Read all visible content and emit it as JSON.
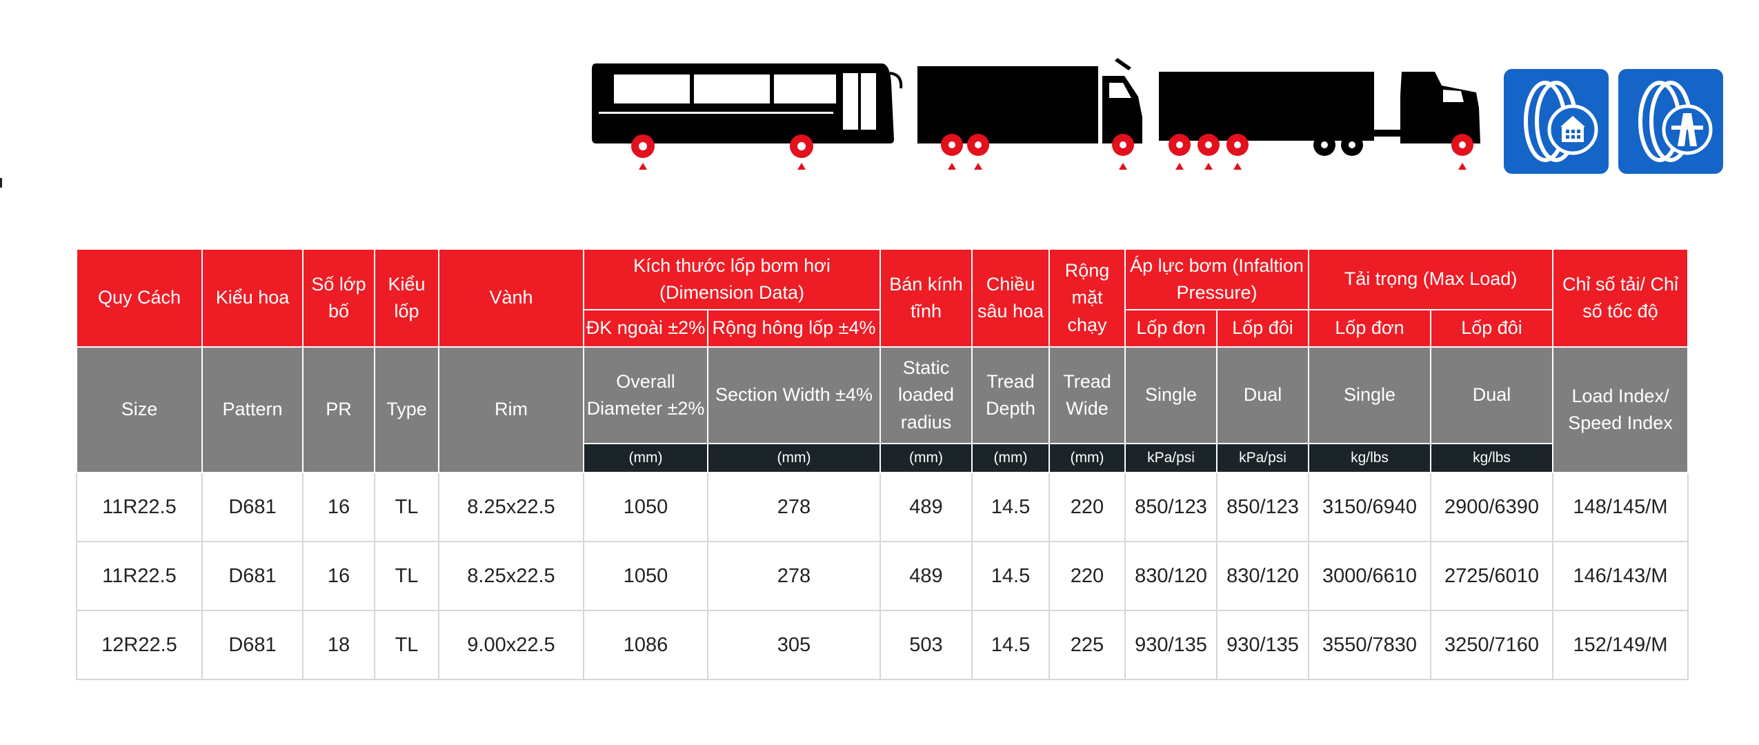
{
  "colors": {
    "accent_red": "#ee1c25",
    "header_gray": "#7f7f80",
    "unit_dark": "#1b2428",
    "icon_blue": "#1565c8"
  },
  "icons": [
    "bus-icon",
    "box-truck-icon",
    "semi-trailer-truck-icon",
    "urban-road-tire-icon",
    "highway-tire-icon"
  ],
  "headers_vi": {
    "size": "Quy Cách",
    "pattern": "Kiểu hoa",
    "pr": "Số lớp bố",
    "type": "Kiểu lốp",
    "rim": "Vành",
    "dimension": "Kích thước lốp bơm hơi (Dimension Data)",
    "overall_diameter": "ĐK ngoài ±2%",
    "section_width": "Rộng hông lốp ±4%",
    "static_radius": "Bán kính tĩnh",
    "tread_depth": "Chiều sâu hoa",
    "tread_wide": "Rộng mặt chạy",
    "pressure": "Áp lực bơm (Infaltion Pressure)",
    "pressure_single": "Lốp đơn",
    "pressure_dual": "Lốp đôi",
    "load": "Tải trọng (Max Load)",
    "load_single": "Lốp đơn",
    "load_dual": "Lốp đôi",
    "index": "Chỉ số tải/ Chỉ số tốc độ"
  },
  "headers_en": {
    "size": "Size",
    "pattern": "Pattern",
    "pr": "PR",
    "type": "Type",
    "rim": "Rim",
    "overall_diameter": "Overall Diameter ±2%",
    "section_width": "Section Width ±4%",
    "static_radius": "Static loaded radius",
    "tread_depth": "Tread Depth",
    "tread_wide": "Tread Wide",
    "pressure_single": "Single",
    "pressure_dual": "Dual",
    "load_single": "Single",
    "load_dual": "Dual",
    "index": "Load Index/ Speed Index"
  },
  "units": {
    "overall_diameter": "(mm)",
    "section_width": "(mm)",
    "static_radius": "(mm)",
    "tread_depth": "(mm)",
    "tread_wide": "(mm)",
    "pressure_single": "kPa/psi",
    "pressure_dual": "kPa/psi",
    "load_single": "kg/lbs",
    "load_dual": "kg/lbs"
  },
  "rows": [
    {
      "size": "11R22.5",
      "pattern": "D681",
      "pr": "16",
      "type": "TL",
      "rim": "8.25x22.5",
      "overall_diameter": "1050",
      "section_width": "278",
      "static_radius": "489",
      "tread_depth": "14.5",
      "tread_wide": "220",
      "pressure_single": "850/123",
      "pressure_dual": "850/123",
      "load_single": "3150/6940",
      "load_dual": "2900/6390",
      "index": "148/145/M"
    },
    {
      "size": "11R22.5",
      "pattern": "D681",
      "pr": "16",
      "type": "TL",
      "rim": "8.25x22.5",
      "overall_diameter": "1050",
      "section_width": "278",
      "static_radius": "489",
      "tread_depth": "14.5",
      "tread_wide": "220",
      "pressure_single": "830/120",
      "pressure_dual": "830/120",
      "load_single": "3000/6610",
      "load_dual": "2725/6010",
      "index": "146/143/M"
    },
    {
      "size": "12R22.5",
      "pattern": "D681",
      "pr": "18",
      "type": "TL",
      "rim": "9.00x22.5",
      "overall_diameter": "1086",
      "section_width": "305",
      "static_radius": "503",
      "tread_depth": "14.5",
      "tread_wide": "225",
      "pressure_single": "930/135",
      "pressure_dual": "930/135",
      "load_single": "3550/7830",
      "load_dual": "3250/7160",
      "index": "152/149/M"
    }
  ]
}
